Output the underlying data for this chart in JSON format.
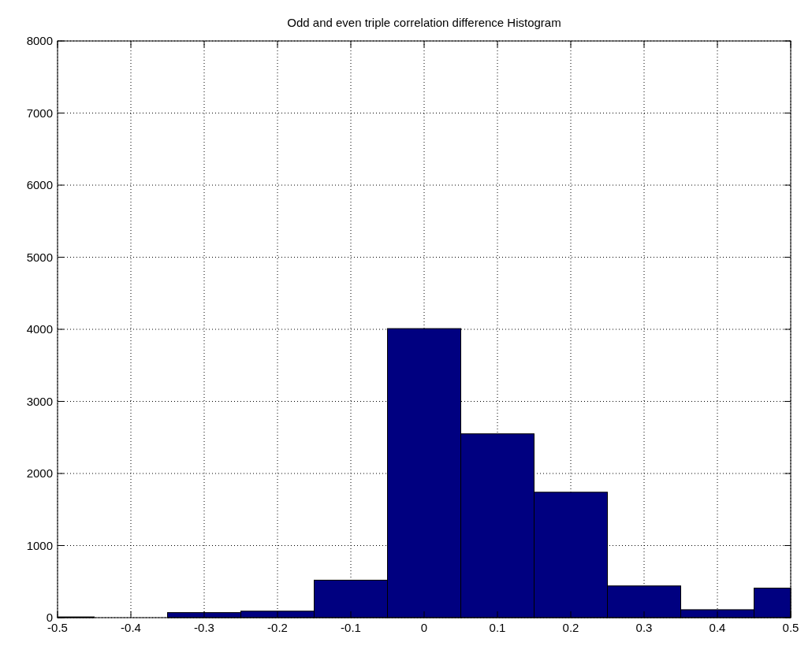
{
  "chart_data": {
    "type": "histogram",
    "title": "Odd and even triple correlation difference Histogram",
    "bins": [
      -0.5,
      -0.45,
      -0.35,
      -0.25,
      -0.15,
      -0.05,
      0.05,
      0.15,
      0.25,
      0.35,
      0.45,
      0.5
    ],
    "values": [
      10,
      0,
      70,
      90,
      520,
      4010,
      2550,
      1740,
      440,
      110,
      410
    ],
    "color": "#000080",
    "xlim": [
      -0.5,
      0.5
    ],
    "xticks": [
      -0.5,
      -0.4,
      -0.3,
      -0.2,
      -0.1,
      0,
      0.1,
      0.2,
      0.3,
      0.4,
      0.5
    ],
    "ylim": [
      0,
      8000
    ],
    "yticks": [
      0,
      1000,
      2000,
      3000,
      4000,
      5000,
      6000,
      7000,
      8000
    ],
    "grid": true
  }
}
